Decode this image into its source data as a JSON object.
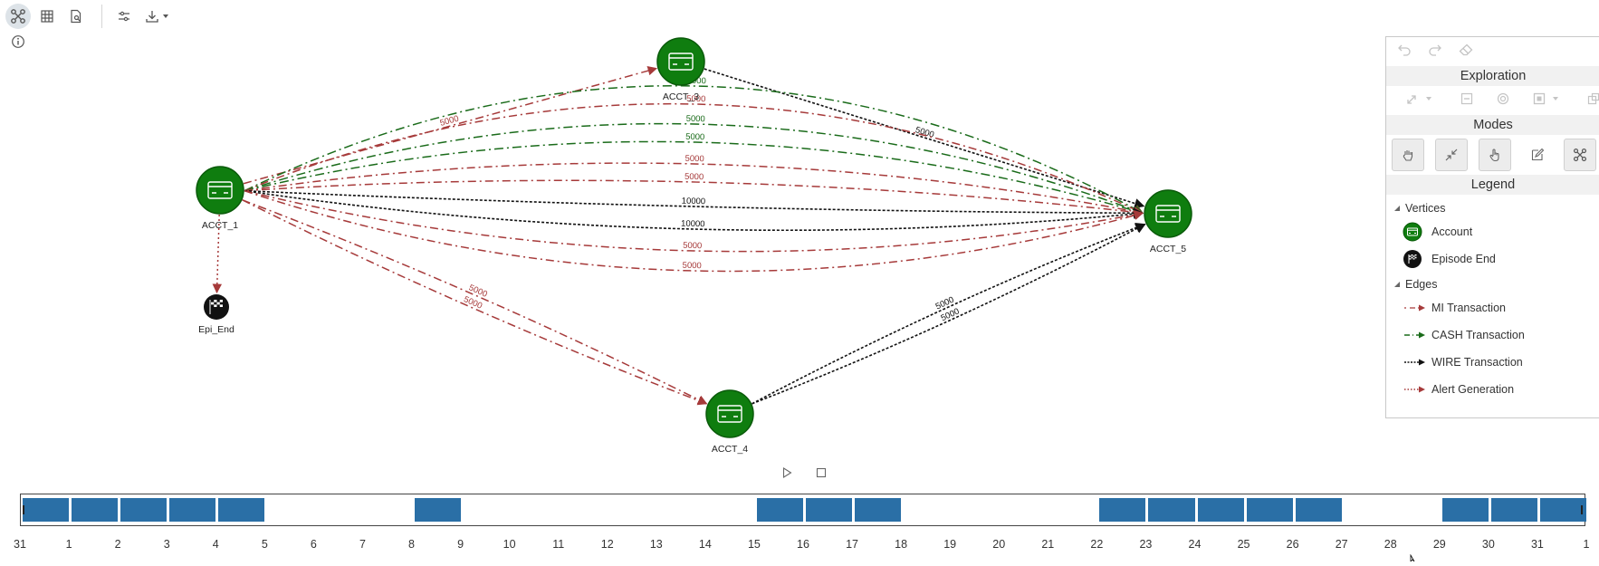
{
  "toolbar": {
    "items": [
      {
        "icon": "graph-view-icon",
        "active": true
      },
      {
        "icon": "table-view-icon"
      },
      {
        "icon": "document-search-icon"
      },
      {
        "icon": "settings-sliders-icon"
      },
      {
        "icon": "download-icon"
      }
    ]
  },
  "graph": {
    "colors": {
      "mi": "#a63a3a",
      "cash": "#1a6b1a",
      "wire": "#111111",
      "node_fill": "#0f7d0f"
    },
    "nodes": [
      {
        "id": "ACCT_1",
        "label": "ACCT_1",
        "type": "account"
      },
      {
        "id": "ACCT_3",
        "label": "ACCT_3",
        "type": "account"
      },
      {
        "id": "ACCT_4",
        "label": "ACCT_4",
        "type": "account"
      },
      {
        "id": "ACCT_5",
        "label": "ACCT_5",
        "type": "account"
      },
      {
        "id": "Epi_End",
        "label": "Epi_End",
        "type": "episode_end"
      }
    ],
    "edges": [
      {
        "from": "ACCT_1",
        "to": "ACCT_3",
        "type": "mi",
        "label": "5000"
      },
      {
        "from": "ACCT_3",
        "to": "ACCT_5",
        "type": "wire",
        "label": "5000"
      },
      {
        "from": "ACCT_1",
        "to": "ACCT_5",
        "type": "cash",
        "label": "5000"
      },
      {
        "from": "ACCT_1",
        "to": "ACCT_5",
        "type": "mi",
        "label": "5000"
      },
      {
        "from": "ACCT_1",
        "to": "ACCT_5",
        "type": "cash",
        "label": "5000"
      },
      {
        "from": "ACCT_1",
        "to": "ACCT_5",
        "type": "cash",
        "label": "5000"
      },
      {
        "from": "ACCT_1",
        "to": "ACCT_5",
        "type": "mi",
        "label": "5000"
      },
      {
        "from": "ACCT_1",
        "to": "ACCT_5",
        "type": "mi",
        "label": "5000"
      },
      {
        "from": "ACCT_1",
        "to": "ACCT_5",
        "type": "wire",
        "label": "10000"
      },
      {
        "from": "ACCT_1",
        "to": "ACCT_5",
        "type": "wire",
        "label": "10000"
      },
      {
        "from": "ACCT_1",
        "to": "ACCT_5",
        "type": "mi",
        "label": "5000"
      },
      {
        "from": "ACCT_1",
        "to": "ACCT_5",
        "type": "mi",
        "label": "5000"
      },
      {
        "from": "ACCT_1",
        "to": "ACCT_4",
        "type": "mi",
        "label": "5000"
      },
      {
        "from": "ACCT_1",
        "to": "ACCT_4",
        "type": "mi",
        "label": "5000"
      },
      {
        "from": "ACCT_4",
        "to": "ACCT_5",
        "type": "wire",
        "label": "5000"
      },
      {
        "from": "ACCT_4",
        "to": "ACCT_5",
        "type": "wire",
        "label": "5000"
      },
      {
        "from": "ACCT_1",
        "to": "Epi_End",
        "type": "alert",
        "label": ""
      }
    ]
  },
  "panel": {
    "exploration_title": "Exploration",
    "modes_title": "Modes",
    "legend_title": "Legend",
    "vertices_heading": "Vertices",
    "edges_heading": "Edges",
    "vertices": [
      {
        "label": "Account",
        "icon": "account-icon"
      },
      {
        "label": "Episode End",
        "icon": "episode-end-icon"
      }
    ],
    "edges": [
      {
        "label": "MI Transaction",
        "style": "mi"
      },
      {
        "label": "CASH Transaction",
        "style": "cash"
      },
      {
        "label": "WIRE Transaction",
        "style": "wire"
      },
      {
        "label": "Alert Generation",
        "style": "alert"
      }
    ]
  },
  "timeline": {
    "bar_color": "#2a6fa6",
    "ticks": [
      "31",
      "1",
      "2",
      "3",
      "4",
      "5",
      "6",
      "7",
      "8",
      "9",
      "10",
      "11",
      "12",
      "13",
      "14",
      "15",
      "16",
      "17",
      "18",
      "19",
      "20",
      "21",
      "22",
      "23",
      "24",
      "25",
      "26",
      "27",
      "28",
      "29",
      "30",
      "31",
      "1"
    ],
    "filled_days": [
      "31",
      "1",
      "2",
      "3",
      "4",
      "8",
      "15",
      "16",
      "17",
      "22",
      "23",
      "24",
      "25",
      "26",
      "29",
      "30",
      "31"
    ]
  }
}
